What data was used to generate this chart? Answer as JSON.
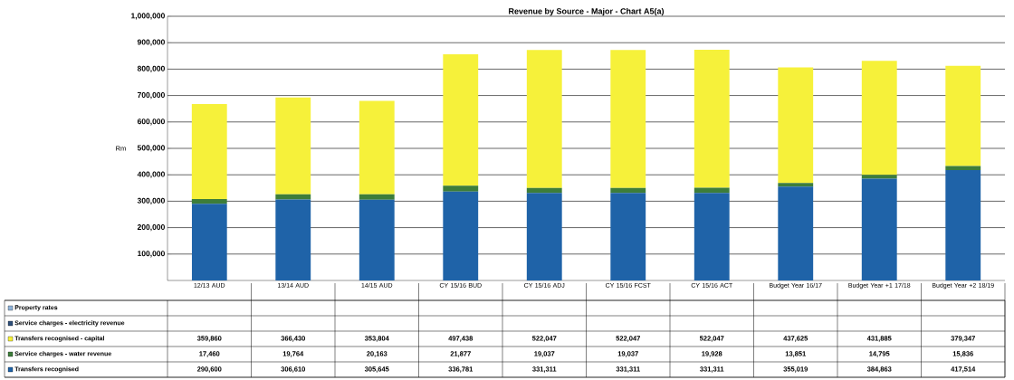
{
  "chart_data": {
    "type": "bar",
    "stacked": true,
    "title": "Revenue by Source - Major - Chart A5(a)",
    "ylabel": "Rm",
    "categories": [
      "12/13 AUD",
      "13/14 AUD",
      "14/15 AUD",
      "CY 15/16 BUD",
      "CY 15/16 ADJ",
      "CY 15/16 FCST",
      "CY 15/16 ACT",
      "Budget Year 16/17",
      "Budget Year +1 17/18",
      "Budget Year +2 18/19"
    ],
    "series": [
      {
        "name": "Transfers recognised",
        "color": "#1f63a8",
        "values": [
          290600,
          306610,
          305645,
          336781,
          331311,
          331311,
          331311,
          355019,
          384863,
          417514
        ],
        "value_labels": [
          "290,600",
          "306,610",
          "305,645",
          "336,781",
          "331,311",
          "331,311",
          "331,311",
          "355,019",
          "384,863",
          "417,514"
        ]
      },
      {
        "name": "Service charges - water revenue",
        "color": "#3d7d3a",
        "values": [
          17460,
          19764,
          20163,
          21877,
          19037,
          19037,
          19928,
          13851,
          14795,
          15836
        ],
        "value_labels": [
          "17,460",
          "19,764",
          "20,163",
          "21,877",
          "19,037",
          "19,037",
          "19,928",
          "13,851",
          "14,795",
          "15,836"
        ]
      },
      {
        "name": "Transfers recognised - capital",
        "color": "#f6f13a",
        "values": [
          359860,
          366430,
          353804,
          497438,
          522047,
          522047,
          522047,
          437625,
          431885,
          379347
        ],
        "value_labels": [
          "359,860",
          "366,430",
          "353,804",
          "497,438",
          "522,047",
          "522,047",
          "522,047",
          "437,625",
          "431,885",
          "379,347"
        ]
      },
      {
        "name": "Service charges - electricity revenue",
        "color": "#2e4f7a",
        "values": [
          null,
          null,
          null,
          null,
          null,
          null,
          null,
          null,
          null,
          null
        ]
      },
      {
        "name": "Property rates",
        "color": "#8fb3d9",
        "values": [
          null,
          null,
          null,
          null,
          null,
          null,
          null,
          null,
          null,
          null
        ]
      }
    ],
    "ylim": [
      0,
      1000000
    ],
    "yticks": [
      {
        "value": 100000,
        "label": "100,000"
      },
      {
        "value": 200000,
        "label": "200,000"
      },
      {
        "value": 300000,
        "label": "300,000"
      },
      {
        "value": 400000,
        "label": "400,000"
      },
      {
        "value": 500000,
        "label": "500,000"
      },
      {
        "value": 600000,
        "label": "600,000"
      },
      {
        "value": 700000,
        "label": "700,000"
      },
      {
        "value": 800000,
        "label": "800,000"
      },
      {
        "value": 900000,
        "label": "900,000"
      },
      {
        "value": 1000000,
        "label": "1,000,000"
      }
    ],
    "grid": "y",
    "legend": "bottom"
  }
}
